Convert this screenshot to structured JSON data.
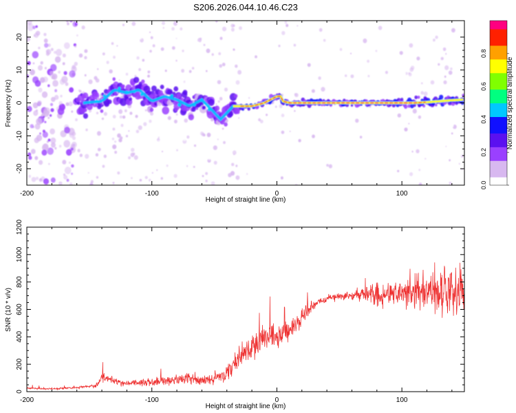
{
  "title": "S206.2026.044.10.46.C23",
  "chart_data": [
    {
      "type": "heatmap",
      "xlabel": "Height of straight line (km)",
      "ylabel": "Frequency (Hz)",
      "xlim": [
        -200,
        150
      ],
      "ylim": [
        -25,
        25
      ],
      "x_ticks": [
        -200,
        -100,
        0,
        100
      ],
      "y_ticks": [
        20,
        10,
        0,
        -10,
        -20
      ],
      "grid": false,
      "colorbar": {
        "label": "Normalized spectral amplitude",
        "range": [
          0.0,
          1.0
        ],
        "ticks": [
          0.0,
          0.2,
          0.4,
          0.6,
          0.8
        ],
        "colors": [
          "#ffffff",
          "#d8b8f0",
          "#9a40ff",
          "#5a10f0",
          "#1010ff",
          "#00c8ff",
          "#00ff80",
          "#80ff00",
          "#ffff00",
          "#ffa000",
          "#ff2000",
          "#ff0080"
        ]
      },
      "ridge": {
        "x": [
          -155,
          -140,
          -130,
          -120,
          -110,
          -100,
          -90,
          -80,
          -70,
          -60,
          -50,
          -45,
          -40,
          -35,
          -30,
          -20,
          -10,
          -5,
          0,
          3,
          5,
          10,
          20,
          40,
          60,
          80,
          90,
          100,
          110,
          120,
          130,
          140,
          150
        ],
        "y": [
          0,
          0.5,
          4,
          3,
          4,
          0.5,
          2,
          1,
          -1,
          1,
          -3,
          -5,
          -3,
          -1,
          -1,
          -1,
          0,
          1,
          2,
          2,
          0.5,
          0,
          0,
          0,
          0,
          0,
          0,
          0,
          0,
          0.2,
          0.5,
          0.8,
          1.0
        ]
      }
    },
    {
      "type": "line",
      "xlabel": "Height of straight line (km)",
      "ylabel": "SNR (10 * v/v)",
      "xlim": [
        -200,
        150
      ],
      "ylim": [
        0,
        1200
      ],
      "x_ticks": [
        -200,
        -100,
        0,
        100
      ],
      "y_ticks": [
        0,
        200,
        400,
        600,
        800,
        1000,
        1200
      ],
      "grid": false,
      "series_color": "#ee3333",
      "x": [
        -200,
        -180,
        -160,
        -145,
        -140,
        -120,
        -100,
        -80,
        -70,
        -60,
        -50,
        -40,
        -30,
        -20,
        -10,
        0,
        10,
        20,
        30,
        40,
        50,
        60,
        70,
        80,
        90,
        100,
        110,
        120,
        130,
        140,
        150
      ],
      "y": [
        25,
        20,
        30,
        40,
        100,
        60,
        70,
        90,
        100,
        80,
        100,
        130,
        250,
        330,
        400,
        390,
        440,
        540,
        640,
        680,
        690,
        700,
        710,
        720,
        725,
        730,
        725,
        735,
        730,
        740,
        720
      ],
      "spread": [
        10,
        10,
        12,
        20,
        50,
        30,
        40,
        60,
        70,
        60,
        70,
        90,
        120,
        130,
        130,
        120,
        120,
        100,
        50,
        40,
        40,
        60,
        90,
        130,
        160,
        170,
        200,
        230,
        250,
        260,
        250
      ]
    }
  ]
}
